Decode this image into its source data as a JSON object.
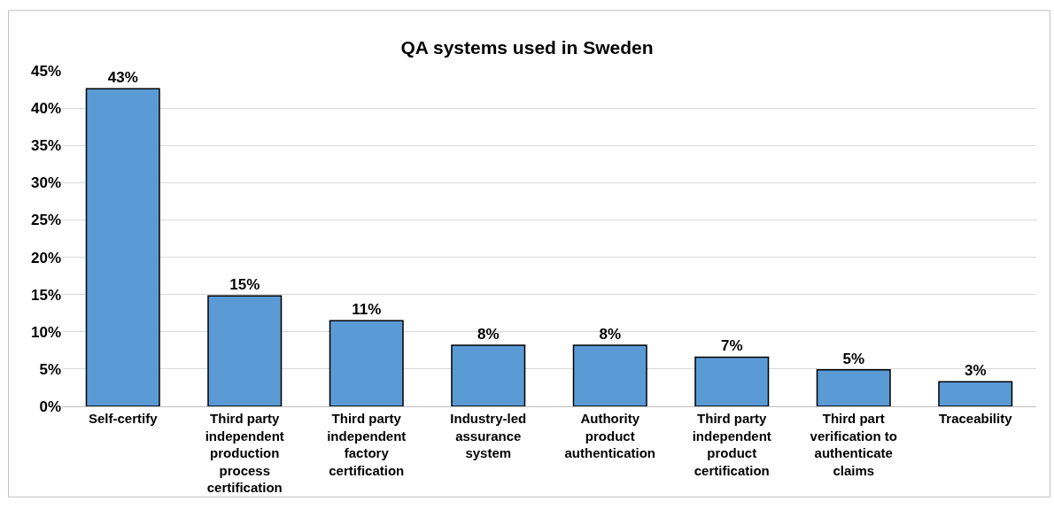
{
  "chart_data": {
    "type": "bar",
    "title": "QA systems used in Sweden",
    "categories": [
      "Self-certify",
      "Third party independent production process certification",
      "Third party independent factory certification",
      "Industry-led assurance system",
      "Authority product authentication",
      "Third party independent product certification",
      "Third part verification to authenticate claims",
      "Traceability"
    ],
    "values": [
      42.6,
      14.8,
      11.5,
      8.2,
      8.2,
      6.6,
      4.9,
      3.3
    ],
    "value_labels": [
      "43%",
      "15%",
      "11%",
      "8%",
      "8%",
      "7%",
      "5%",
      "3%"
    ],
    "color": "#5b9bd5",
    "ylim": [
      0,
      45
    ],
    "yticks": [
      {
        "value": 0,
        "label": "0%"
      },
      {
        "value": 5,
        "label": "5%"
      },
      {
        "value": 10,
        "label": "10%"
      },
      {
        "value": 15,
        "label": "15%"
      },
      {
        "value": 20,
        "label": "20%"
      },
      {
        "value": 25,
        "label": "25%"
      },
      {
        "value": 30,
        "label": "30%"
      },
      {
        "value": 35,
        "label": "35%"
      },
      {
        "value": 40,
        "label": "40%"
      },
      {
        "value": 45,
        "label": "45%"
      }
    ],
    "grid": "y"
  }
}
